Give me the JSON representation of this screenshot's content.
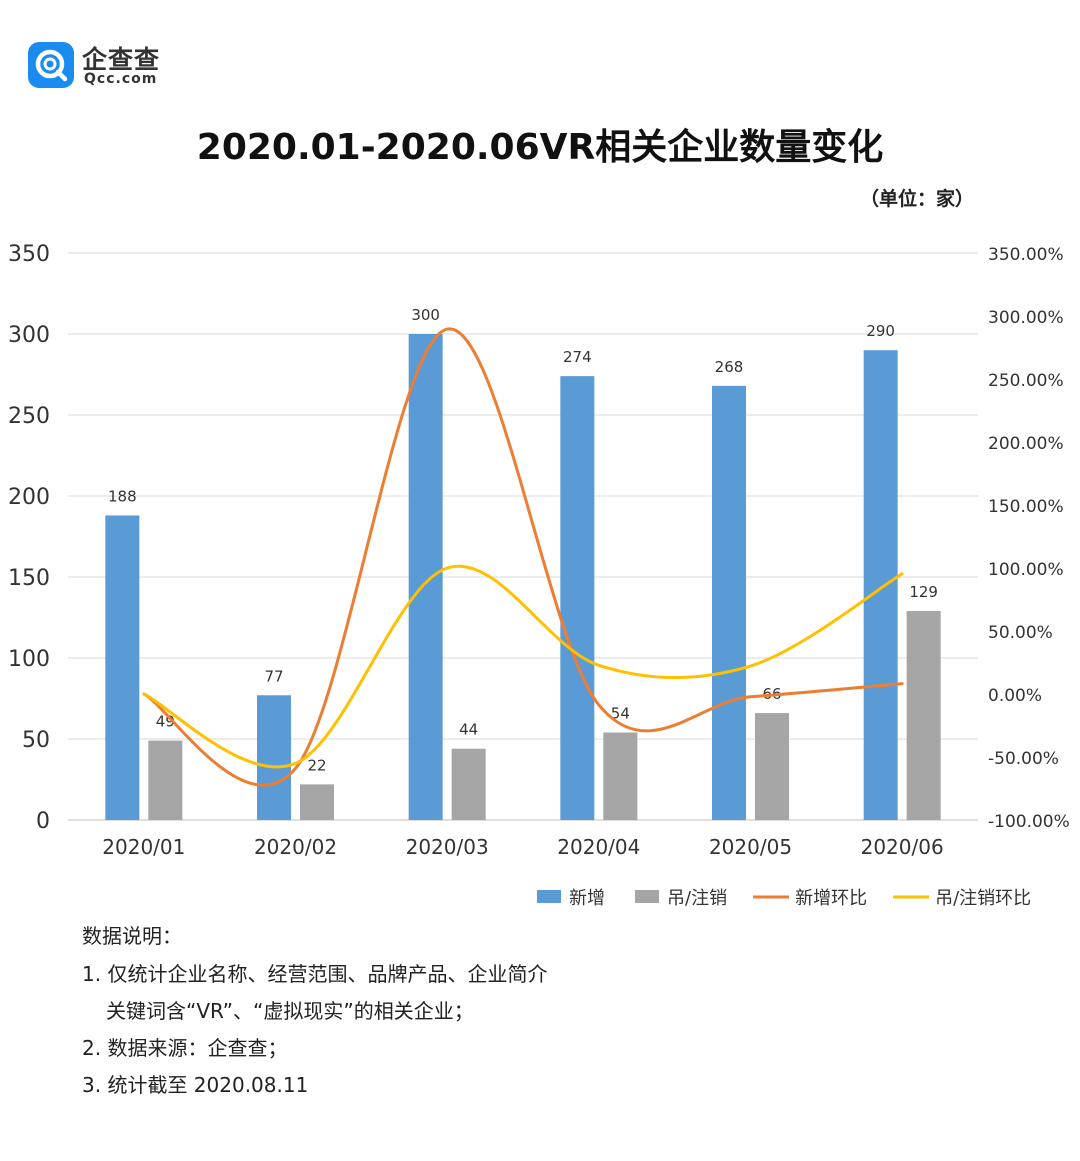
{
  "logo": {
    "name": "企查查",
    "domain": "Qcc.com"
  },
  "unit_note": "（单位：家）",
  "chart_data": {
    "type": "bar",
    "title": "2020.01-2020.06VR相关企业数量变化",
    "categories": [
      "2020/01",
      "2020/02",
      "2020/03",
      "2020/04",
      "2020/05",
      "2020/06"
    ],
    "series": [
      {
        "name": "新增",
        "kind": "bar",
        "axis": "left",
        "color": "#5b9bd5",
        "values": [
          188,
          77,
          300,
          274,
          268,
          290
        ]
      },
      {
        "name": "吊/注销",
        "kind": "bar",
        "axis": "left",
        "color": "#a5a5a5",
        "values": [
          49,
          22,
          44,
          54,
          66,
          129
        ]
      },
      {
        "name": "新增环比",
        "kind": "line",
        "axis": "right",
        "color": "#ed7d31",
        "values": [
          0,
          -59.04,
          289.61,
          -8.67,
          -2.19,
          8.21
        ]
      },
      {
        "name": "吊/注销环比",
        "kind": "line",
        "axis": "right",
        "color": "#ffc000",
        "values": [
          0,
          -55.1,
          100,
          22.73,
          22.22,
          95.45
        ]
      }
    ],
    "left_axis": {
      "min": 0,
      "max": 350,
      "step": 50,
      "ticks": [
        "0",
        "50",
        "100",
        "150",
        "200",
        "250",
        "300",
        "350"
      ]
    },
    "right_axis": {
      "min": -100,
      "max": 350,
      "step": 50,
      "ticks": [
        "-100.00%",
        "-50.00%",
        "0.00%",
        "50.00%",
        "100.00%",
        "150.00%",
        "200.00%",
        "250.00%",
        "300.00%",
        "350.00%"
      ]
    },
    "gridlines": true,
    "legend_position": "bottom-right",
    "data_labels": true
  },
  "notes": {
    "heading": "数据说明：",
    "items": [
      {
        "line": "1. 仅统计企业名称、经营范围、品牌产品、企业简介",
        "cont": "关键词含“VR”、“虚拟现实”的相关企业；"
      },
      {
        "line": "2. 数据来源：企查查；"
      },
      {
        "line": "3. 统计截至 2020.08.11"
      }
    ]
  }
}
